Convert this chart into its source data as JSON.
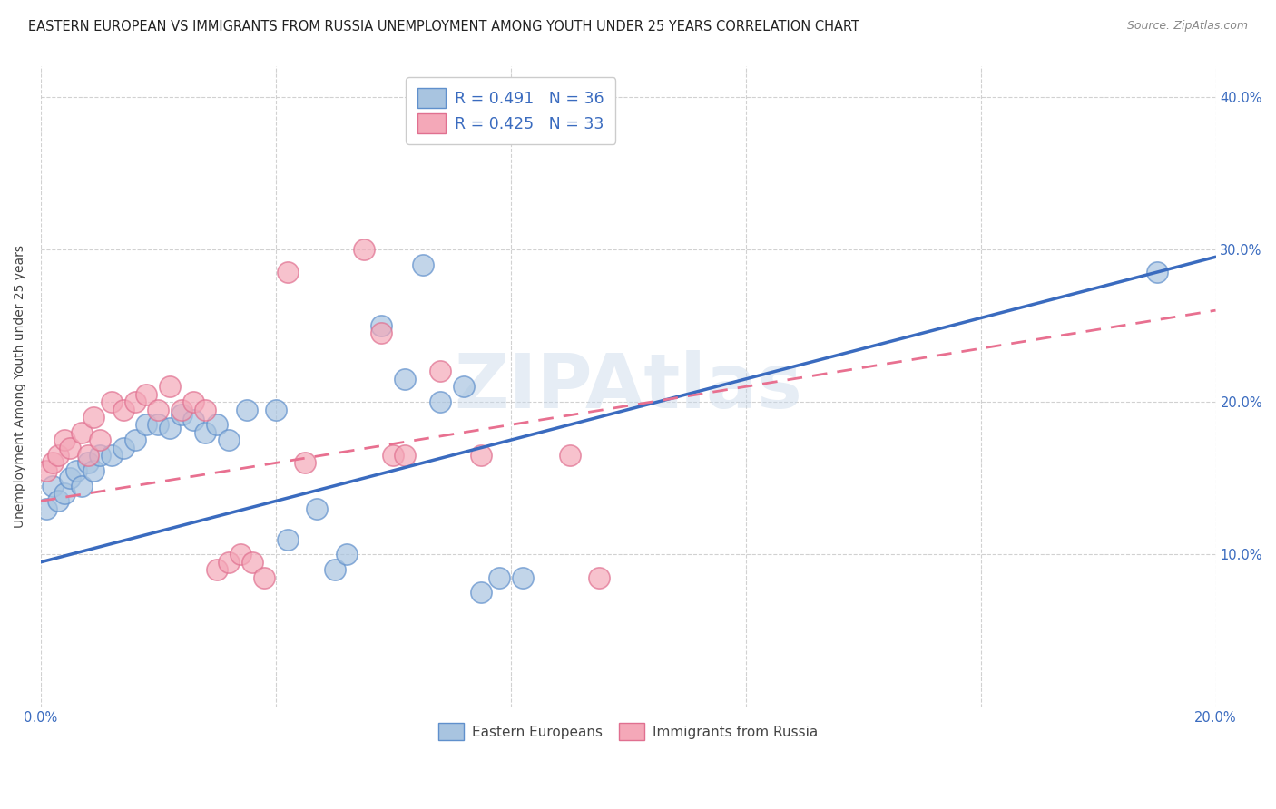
{
  "title": "EASTERN EUROPEAN VS IMMIGRANTS FROM RUSSIA UNEMPLOYMENT AMONG YOUTH UNDER 25 YEARS CORRELATION CHART",
  "source": "Source: ZipAtlas.com",
  "ylabel": "Unemployment Among Youth under 25 years",
  "xlim": [
    0.0,
    0.2
  ],
  "ylim": [
    0.0,
    0.42
  ],
  "xticks": [
    0.0,
    0.04,
    0.08,
    0.12,
    0.16,
    0.2
  ],
  "yticks": [
    0.0,
    0.1,
    0.2,
    0.3,
    0.4
  ],
  "ytick_labels_right": [
    "",
    "10.0%",
    "20.0%",
    "30.0%",
    "40.0%"
  ],
  "xtick_labels": [
    "0.0%",
    "",
    "",
    "",
    "",
    "20.0%"
  ],
  "legend_entries": [
    {
      "label": "R = 0.491   N = 36"
    },
    {
      "label": "R = 0.425   N = 33"
    }
  ],
  "legend_labels_bottom": [
    "Eastern Europeans",
    "Immigrants from Russia"
  ],
  "blue_scatter_color": "#a8c4e0",
  "pink_scatter_color": "#f4a8b8",
  "blue_line_color": "#3a6bbf",
  "pink_line_color": "#e87090",
  "blue_edge_color": "#6090cc",
  "pink_edge_color": "#e07090",
  "watermark": "ZIPAtlas",
  "background_color": "#ffffff",
  "grid_color": "#cccccc",
  "title_fontsize": 10.5,
  "axis_fontsize": 10,
  "tick_fontsize": 10.5,
  "blue_points": [
    [
      0.001,
      0.13
    ],
    [
      0.002,
      0.145
    ],
    [
      0.003,
      0.135
    ],
    [
      0.004,
      0.14
    ],
    [
      0.005,
      0.15
    ],
    [
      0.006,
      0.155
    ],
    [
      0.007,
      0.145
    ],
    [
      0.008,
      0.16
    ],
    [
      0.009,
      0.155
    ],
    [
      0.01,
      0.165
    ],
    [
      0.012,
      0.165
    ],
    [
      0.014,
      0.17
    ],
    [
      0.016,
      0.175
    ],
    [
      0.018,
      0.185
    ],
    [
      0.02,
      0.185
    ],
    [
      0.022,
      0.183
    ],
    [
      0.024,
      0.192
    ],
    [
      0.026,
      0.188
    ],
    [
      0.028,
      0.18
    ],
    [
      0.03,
      0.185
    ],
    [
      0.032,
      0.175
    ],
    [
      0.035,
      0.195
    ],
    [
      0.04,
      0.195
    ],
    [
      0.042,
      0.11
    ],
    [
      0.047,
      0.13
    ],
    [
      0.05,
      0.09
    ],
    [
      0.052,
      0.1
    ],
    [
      0.058,
      0.25
    ],
    [
      0.062,
      0.215
    ],
    [
      0.065,
      0.29
    ],
    [
      0.068,
      0.2
    ],
    [
      0.072,
      0.21
    ],
    [
      0.075,
      0.075
    ],
    [
      0.078,
      0.085
    ],
    [
      0.082,
      0.085
    ],
    [
      0.19,
      0.285
    ]
  ],
  "pink_points": [
    [
      0.001,
      0.155
    ],
    [
      0.002,
      0.16
    ],
    [
      0.003,
      0.165
    ],
    [
      0.004,
      0.175
    ],
    [
      0.005,
      0.17
    ],
    [
      0.007,
      0.18
    ],
    [
      0.008,
      0.165
    ],
    [
      0.009,
      0.19
    ],
    [
      0.01,
      0.175
    ],
    [
      0.012,
      0.2
    ],
    [
      0.014,
      0.195
    ],
    [
      0.016,
      0.2
    ],
    [
      0.018,
      0.205
    ],
    [
      0.02,
      0.195
    ],
    [
      0.022,
      0.21
    ],
    [
      0.024,
      0.195
    ],
    [
      0.026,
      0.2
    ],
    [
      0.028,
      0.195
    ],
    [
      0.03,
      0.09
    ],
    [
      0.032,
      0.095
    ],
    [
      0.034,
      0.1
    ],
    [
      0.036,
      0.095
    ],
    [
      0.038,
      0.085
    ],
    [
      0.042,
      0.285
    ],
    [
      0.045,
      0.16
    ],
    [
      0.055,
      0.3
    ],
    [
      0.058,
      0.245
    ],
    [
      0.06,
      0.165
    ],
    [
      0.062,
      0.165
    ],
    [
      0.068,
      0.22
    ],
    [
      0.075,
      0.165
    ],
    [
      0.09,
      0.165
    ],
    [
      0.095,
      0.085
    ]
  ]
}
